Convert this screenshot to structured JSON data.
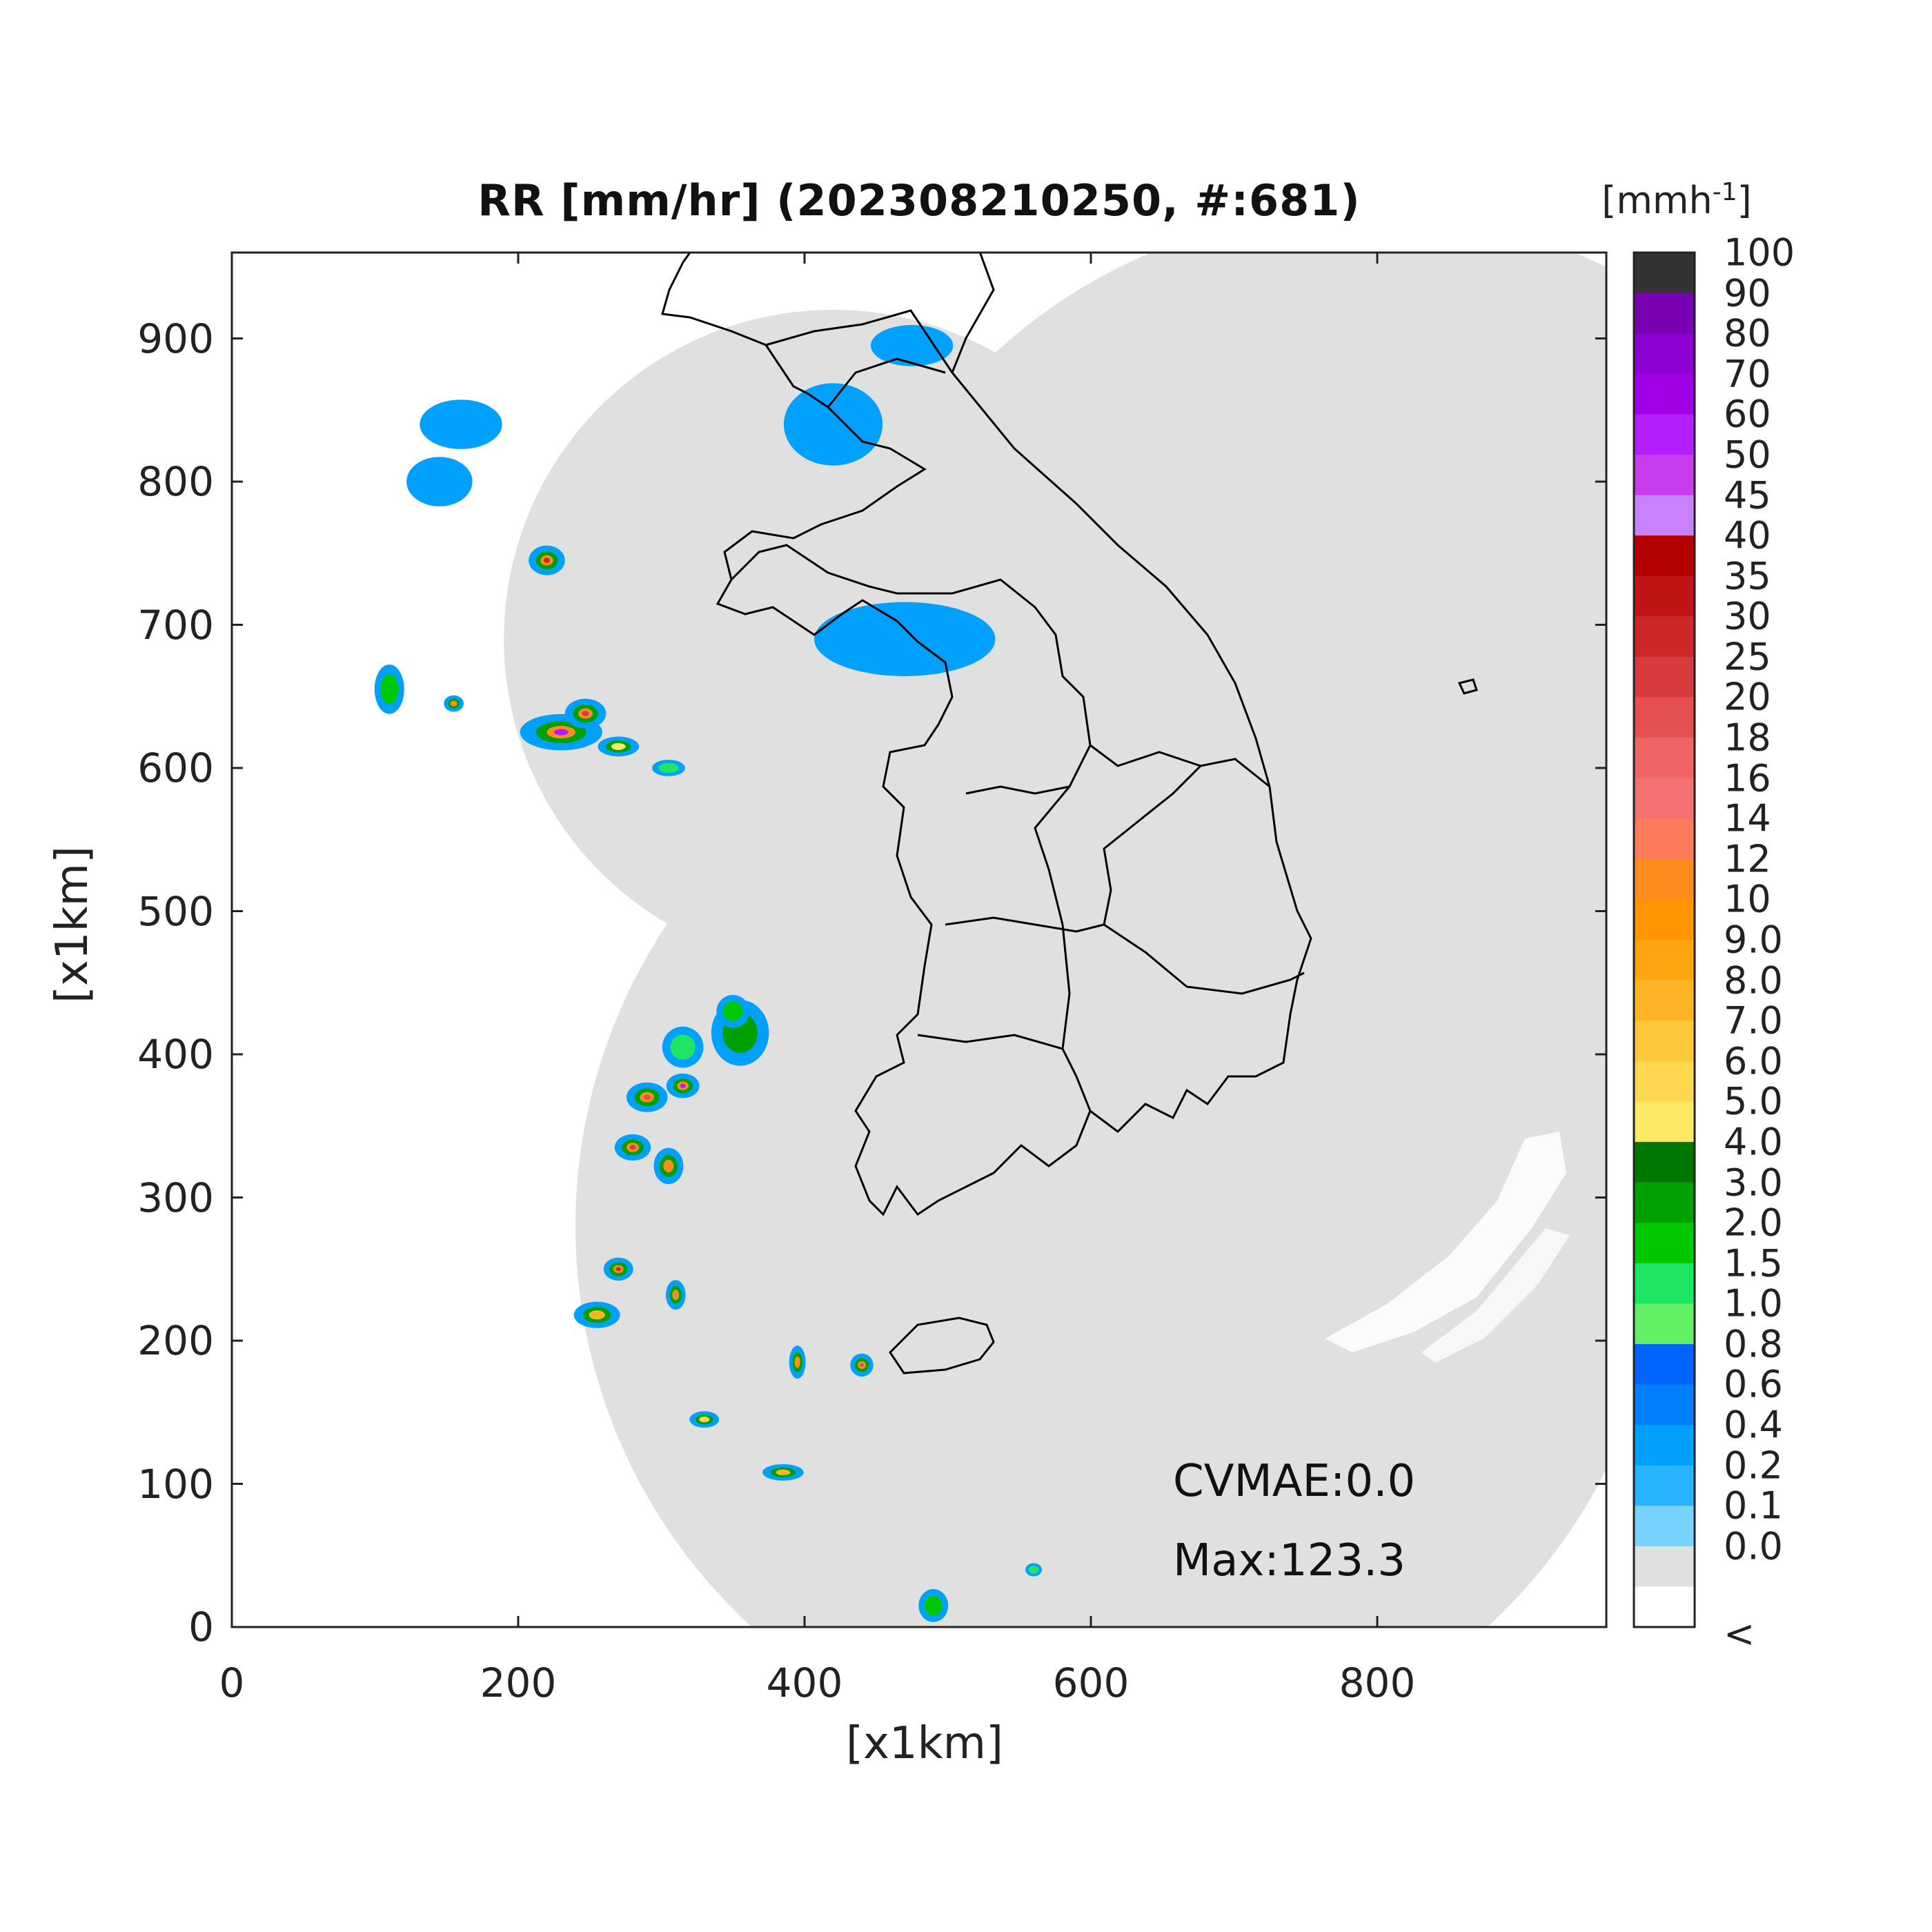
{
  "title": "RR [mm/hr] (202308210250, #:681)",
  "xlabel": "[x1km]",
  "ylabel": "[x1km]",
  "annotations": {
    "cvmae": "CVMAE:0.0",
    "max": "Max:123.3"
  },
  "colorbar": {
    "unit_base": "[mmh",
    "unit_exp": "-1",
    "unit_close": "]",
    "labels": [
      "100",
      "90",
      "80",
      "70",
      "60",
      "50",
      "45",
      "40",
      "35",
      "30",
      "25",
      "20",
      "18",
      "16",
      "14",
      "12",
      "10",
      "9.0",
      "8.0",
      "7.0",
      "6.0",
      "5.0",
      "4.0",
      "3.0",
      "2.0",
      "1.5",
      "1.0",
      "0.8",
      "0.6",
      "0.4",
      "0.2",
      "0.1",
      "0.0",
      "<"
    ],
    "colors": [
      "#333333",
      "#7a00b4",
      "#8c00d2",
      "#a000e6",
      "#b41eff",
      "#c83cf0",
      "#c882ff",
      "#b40000",
      "#c01414",
      "#cc2828",
      "#d83c3c",
      "#e65050",
      "#f06464",
      "#f57070",
      "#ff7a5a",
      "#ff8c1e",
      "#ff9600",
      "#ffa510",
      "#ffb428",
      "#ffc83c",
      "#ffd850",
      "#ffe864",
      "#007800",
      "#00a000",
      "#00c800",
      "#1ee664",
      "#64f064",
      "#0064ff",
      "#0080ff",
      "#00a0ff",
      "#28b4ff",
      "#78d2ff",
      "#e0e0e0",
      "#ffffff"
    ]
  },
  "axes": {
    "xlim": [
      0,
      960
    ],
    "ylim": [
      0,
      960
    ],
    "xticks": [
      "0",
      "200",
      "400",
      "600",
      "800"
    ],
    "yticks": [
      "0",
      "100",
      "200",
      "300",
      "400",
      "500",
      "600",
      "700",
      "800",
      "900"
    ]
  },
  "colors": {
    "radar_coverage": "#e0e0e0",
    "background": "#ffffff",
    "coastline": "#000000"
  },
  "chart_data": {
    "type": "heatmap",
    "title": "RR [mm/hr] (202308210250, #:681)",
    "xlabel": "[x1km]",
    "ylabel": "[x1km]",
    "xlim": [
      0,
      960
    ],
    "ylim": [
      0,
      960
    ],
    "coverage_circles": [
      {
        "cx": 420,
        "cy": 690,
        "r": 230
      },
      {
        "cx": 790,
        "cy": 610,
        "r": 380
      },
      {
        "cx": 620,
        "cy": 280,
        "r": 380
      }
    ],
    "rain_cells": [
      {
        "x": 220,
        "y": 745,
        "rr": 30,
        "w": 22,
        "h": 18
      },
      {
        "x": 230,
        "y": 625,
        "rr": 60,
        "w": 50,
        "h": 22
      },
      {
        "x": 247,
        "y": 638,
        "rr": 25,
        "w": 25,
        "h": 18
      },
      {
        "x": 155,
        "y": 645,
        "rr": 18,
        "w": 12,
        "h": 10
      },
      {
        "x": 110,
        "y": 655,
        "rr": 2,
        "w": 18,
        "h": 30
      },
      {
        "x": 270,
        "y": 615,
        "rr": 5,
        "w": 25,
        "h": 12
      },
      {
        "x": 305,
        "y": 600,
        "rr": 1.5,
        "w": 20,
        "h": 10
      },
      {
        "x": 160,
        "y": 840,
        "rr": 0.6,
        "w": 50,
        "h": 30
      },
      {
        "x": 145,
        "y": 800,
        "rr": 1.2,
        "w": 40,
        "h": 30
      },
      {
        "x": 420,
        "y": 840,
        "rr": 0.6,
        "w": 60,
        "h": 50
      },
      {
        "x": 475,
        "y": 895,
        "rr": 0.4,
        "w": 50,
        "h": 25
      },
      {
        "x": 470,
        "y": 690,
        "rr": 1.2,
        "w": 110,
        "h": 45
      },
      {
        "x": 315,
        "y": 405,
        "rr": 1.5,
        "w": 25,
        "h": 25
      },
      {
        "x": 355,
        "y": 415,
        "rr": 3,
        "w": 35,
        "h": 40
      },
      {
        "x": 290,
        "y": 370,
        "rr": 20,
        "w": 25,
        "h": 18
      },
      {
        "x": 315,
        "y": 378,
        "rr": 60,
        "w": 20,
        "h": 15
      },
      {
        "x": 280,
        "y": 335,
        "rr": 25,
        "w": 22,
        "h": 16
      },
      {
        "x": 305,
        "y": 322,
        "rr": 16,
        "w": 18,
        "h": 22
      },
      {
        "x": 270,
        "y": 250,
        "rr": 30,
        "w": 18,
        "h": 14
      },
      {
        "x": 310,
        "y": 232,
        "rr": 14,
        "w": 12,
        "h": 18
      },
      {
        "x": 255,
        "y": 218,
        "rr": 8,
        "w": 28,
        "h": 16
      },
      {
        "x": 350,
        "y": 430,
        "rr": 2,
        "w": 20,
        "h": 20
      },
      {
        "x": 395,
        "y": 185,
        "rr": 14,
        "w": 10,
        "h": 20
      },
      {
        "x": 440,
        "y": 183,
        "rr": 20,
        "w": 14,
        "h": 14
      },
      {
        "x": 385,
        "y": 108,
        "rr": 8,
        "w": 25,
        "h": 10
      },
      {
        "x": 330,
        "y": 145,
        "rr": 6,
        "w": 18,
        "h": 10
      },
      {
        "x": 490,
        "y": 15,
        "rr": 2,
        "w": 18,
        "h": 20
      },
      {
        "x": 560,
        "y": 40,
        "rr": 1.5,
        "w": 10,
        "h": 8
      }
    ]
  }
}
